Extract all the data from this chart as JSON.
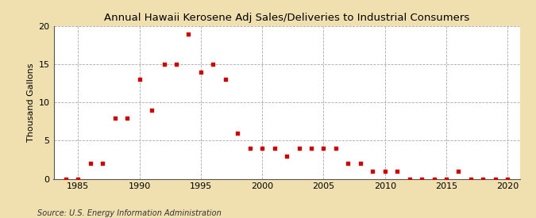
{
  "title": "Annual Hawaii Kerosene Adj Sales/Deliveries to Industrial Consumers",
  "ylabel": "Thousand Gallons",
  "source": "Source: U.S. Energy Information Administration",
  "background_color": "#f0e0b0",
  "plot_background": "#ffffff",
  "marker_color": "#cc0000",
  "xlim": [
    1983,
    2021
  ],
  "ylim": [
    0,
    20
  ],
  "xticks": [
    1985,
    1990,
    1995,
    2000,
    2005,
    2010,
    2015,
    2020
  ],
  "yticks": [
    0,
    5,
    10,
    15,
    20
  ],
  "data_years": [
    1984,
    1985,
    1986,
    1987,
    1988,
    1989,
    1990,
    1991,
    1992,
    1993,
    1994,
    1995,
    1996,
    1997,
    1998,
    1999,
    2000,
    2001,
    2002,
    2003,
    2004,
    2005,
    2006,
    2007,
    2008,
    2009,
    2010,
    2011,
    2012,
    2013,
    2014,
    2015,
    2016,
    2017,
    2018,
    2019,
    2020
  ],
  "data_values": [
    0,
    0,
    2,
    2,
    8,
    8,
    13,
    9,
    15,
    15,
    19,
    14,
    15,
    13,
    6,
    4,
    4,
    4,
    3,
    4,
    4,
    4,
    4,
    2,
    2,
    1,
    1,
    1,
    0,
    0,
    0,
    0,
    1,
    0,
    0,
    0,
    0
  ],
  "title_fontsize": 9.5,
  "ylabel_fontsize": 8,
  "tick_fontsize": 8,
  "source_fontsize": 7
}
